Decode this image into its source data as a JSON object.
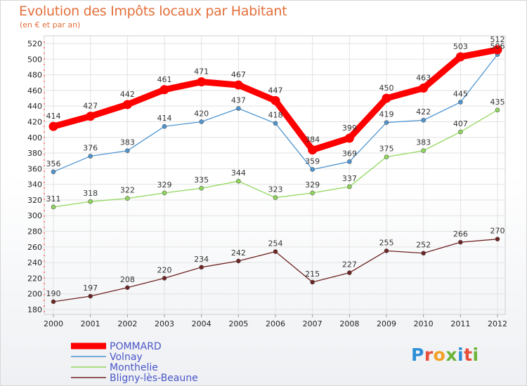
{
  "title": "Evolution des Impôts locaux par Habitant",
  "subtitle": "(en € et par an)",
  "logo_text": "Proxiti",
  "chart_data": {
    "type": "line",
    "x": [
      "2000",
      "2001",
      "2002",
      "2003",
      "2004",
      "2005",
      "2006",
      "2007",
      "2008",
      "2009",
      "2010",
      "2011",
      "2012"
    ],
    "ylim": [
      180,
      520
    ],
    "yticks": [
      180,
      200,
      220,
      240,
      260,
      280,
      300,
      320,
      340,
      360,
      380,
      400,
      420,
      440,
      460,
      480,
      500,
      520
    ],
    "grid": true,
    "legend_position": "bottom-left",
    "series": [
      {
        "name": "POMMARD",
        "color": "#ff0000",
        "values": [
          414,
          427,
          442,
          461,
          471,
          467,
          447,
          384,
          399,
          450,
          463,
          503,
          512
        ]
      },
      {
        "name": "Volnay",
        "color": "#4f95d0",
        "values": [
          356,
          376,
          383,
          414,
          420,
          437,
          418,
          359,
          369,
          419,
          422,
          445,
          506
        ]
      },
      {
        "name": "Monthelie",
        "color": "#8fd85a",
        "values": [
          311,
          318,
          322,
          329,
          335,
          344,
          323,
          329,
          337,
          375,
          383,
          407,
          435
        ]
      },
      {
        "name": "Bligny-lès-Beaune",
        "color": "#6e2222",
        "values": [
          190,
          197,
          208,
          220,
          234,
          242,
          254,
          215,
          227,
          255,
          252,
          266,
          270
        ]
      }
    ]
  }
}
